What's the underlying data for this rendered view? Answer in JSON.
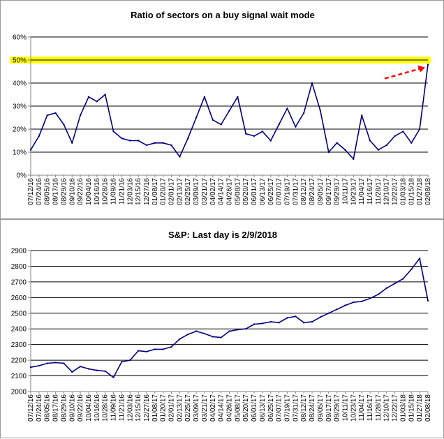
{
  "colors": {
    "line": "#000080",
    "grid": "#000000",
    "highlight": "#ffff00",
    "arrow": "#ff0000",
    "axis": "#808080"
  },
  "chart_data": [
    {
      "type": "line",
      "title": "Ratio of sectors on a buy signal wait mode",
      "ylim": [
        0,
        60
      ],
      "y_ticks": [
        "0%",
        "10%",
        "20%",
        "30%",
        "40%",
        "50%",
        "60%"
      ],
      "highlight_band": [
        48.5,
        51.5
      ],
      "grid": true,
      "annotation": "red dashed arrow pointing to latest value",
      "x_ticks": [
        "07/12/16",
        "07/24/16",
        "08/05/16",
        "08/17/16",
        "08/29/16",
        "09/10/16",
        "09/22/16",
        "10/04/16",
        "10/16/16",
        "10/28/16",
        "11/09/16",
        "11/21/16",
        "12/03/16",
        "12/15/16",
        "12/27/16",
        "01/08/17",
        "01/20/17",
        "02/01/17",
        "02/13/17",
        "02/25/17",
        "03/09/17",
        "03/21/17",
        "04/02/17",
        "04/14/17",
        "04/26/17",
        "05/08/17",
        "05/20/17",
        "06/01/17",
        "06/13/17",
        "06/25/17",
        "07/07/17",
        "07/19/17",
        "07/31/17",
        "08/12/17",
        "08/24/17",
        "09/05/17",
        "09/17/17",
        "09/29/17",
        "10/11/17",
        "10/23/17",
        "11/04/17",
        "11/16/17",
        "11/28/17",
        "12/10/17",
        "12/22/17",
        "01/03/18",
        "01/15/18",
        "01/27/18",
        "02/08/18"
      ],
      "x": [
        "07/12/16",
        "07/24/16",
        "08/05/16",
        "08/17/16",
        "08/29/16",
        "09/10/16",
        "09/22/16",
        "10/04/16",
        "10/16/16",
        "10/28/16",
        "11/09/16",
        "11/21/16",
        "12/03/16",
        "12/15/16",
        "12/27/16",
        "01/08/17",
        "01/20/17",
        "02/01/17",
        "02/13/17",
        "02/25/17",
        "03/09/17",
        "03/21/17",
        "04/02/17",
        "04/14/17",
        "04/26/17",
        "05/08/17",
        "05/20/17",
        "06/01/17",
        "06/13/17",
        "06/25/17",
        "07/07/17",
        "07/19/17",
        "07/31/17",
        "08/12/17",
        "08/24/17",
        "09/05/17",
        "09/17/17",
        "09/29/17",
        "10/11/17",
        "10/23/17",
        "11/04/17",
        "11/16/17",
        "11/28/17",
        "12/10/17",
        "12/22/17",
        "01/03/18",
        "01/15/18",
        "01/27/18",
        "02/08/18"
      ],
      "values": [
        11,
        17,
        26,
        27,
        22,
        14,
        26,
        34,
        32,
        35,
        19,
        16,
        15,
        15,
        13,
        14,
        14,
        13,
        8,
        16,
        25,
        34,
        24,
        22,
        28,
        34,
        18,
        17,
        19,
        15,
        22,
        29,
        21,
        27,
        40,
        28,
        10,
        14,
        11,
        7,
        26,
        15,
        11,
        13,
        17,
        19,
        14,
        20,
        48
      ]
    },
    {
      "type": "line",
      "title": "S&P: Last day is 2/9/2018",
      "ylim": [
        2000,
        2900
      ],
      "y_ticks": [
        "2000",
        "2100",
        "2200",
        "2300",
        "2400",
        "2500",
        "2600",
        "2700",
        "2800",
        "2900"
      ],
      "grid": true,
      "x_ticks": [
        "07/12/16",
        "07/24/16",
        "08/05/16",
        "08/17/16",
        "08/29/16",
        "09/10/16",
        "09/22/16",
        "10/04/16",
        "10/16/16",
        "10/28/16",
        "11/09/16",
        "11/21/16",
        "12/03/16",
        "12/15/16",
        "12/27/16",
        "01/08/17",
        "01/20/17",
        "02/01/17",
        "02/13/17",
        "02/25/17",
        "03/09/17",
        "03/21/17",
        "04/02/17",
        "04/14/17",
        "04/26/17",
        "05/08/17",
        "05/20/17",
        "06/01/17",
        "06/13/17",
        "06/25/17",
        "07/07/17",
        "07/19/17",
        "07/31/17",
        "08/12/17",
        "08/24/17",
        "09/05/17",
        "09/17/17",
        "09/29/17",
        "10/11/17",
        "10/23/17",
        "11/04/17",
        "11/16/17",
        "11/28/17",
        "12/10/17",
        "12/22/17",
        "01/03/18",
        "01/15/18",
        "01/27/18",
        "02/08/18"
      ],
      "x": [
        "07/12/16",
        "07/24/16",
        "08/05/16",
        "08/17/16",
        "08/29/16",
        "09/10/16",
        "09/22/16",
        "10/04/16",
        "10/16/16",
        "10/28/16",
        "11/09/16",
        "11/21/16",
        "12/03/16",
        "12/15/16",
        "12/27/16",
        "01/08/17",
        "01/20/17",
        "02/01/17",
        "02/13/17",
        "02/25/17",
        "03/09/17",
        "03/21/17",
        "04/02/17",
        "04/14/17",
        "04/26/17",
        "05/08/17",
        "05/20/17",
        "06/01/17",
        "06/13/17",
        "06/25/17",
        "07/07/17",
        "07/19/17",
        "07/31/17",
        "08/12/17",
        "08/24/17",
        "09/05/17",
        "09/17/17",
        "09/29/17",
        "10/11/17",
        "10/23/17",
        "11/04/17",
        "11/16/17",
        "11/28/17",
        "12/10/17",
        "12/22/17",
        "01/03/18",
        "01/15/18",
        "01/27/18",
        "02/08/18"
      ],
      "values": [
        2155,
        2165,
        2180,
        2185,
        2180,
        2125,
        2160,
        2145,
        2135,
        2130,
        2090,
        2190,
        2200,
        2260,
        2255,
        2270,
        2270,
        2285,
        2335,
        2365,
        2385,
        2370,
        2350,
        2345,
        2385,
        2395,
        2400,
        2430,
        2435,
        2445,
        2440,
        2470,
        2480,
        2440,
        2445,
        2475,
        2500,
        2525,
        2550,
        2570,
        2575,
        2595,
        2620,
        2660,
        2690,
        2720,
        2780,
        2850,
        2580
      ]
    }
  ]
}
